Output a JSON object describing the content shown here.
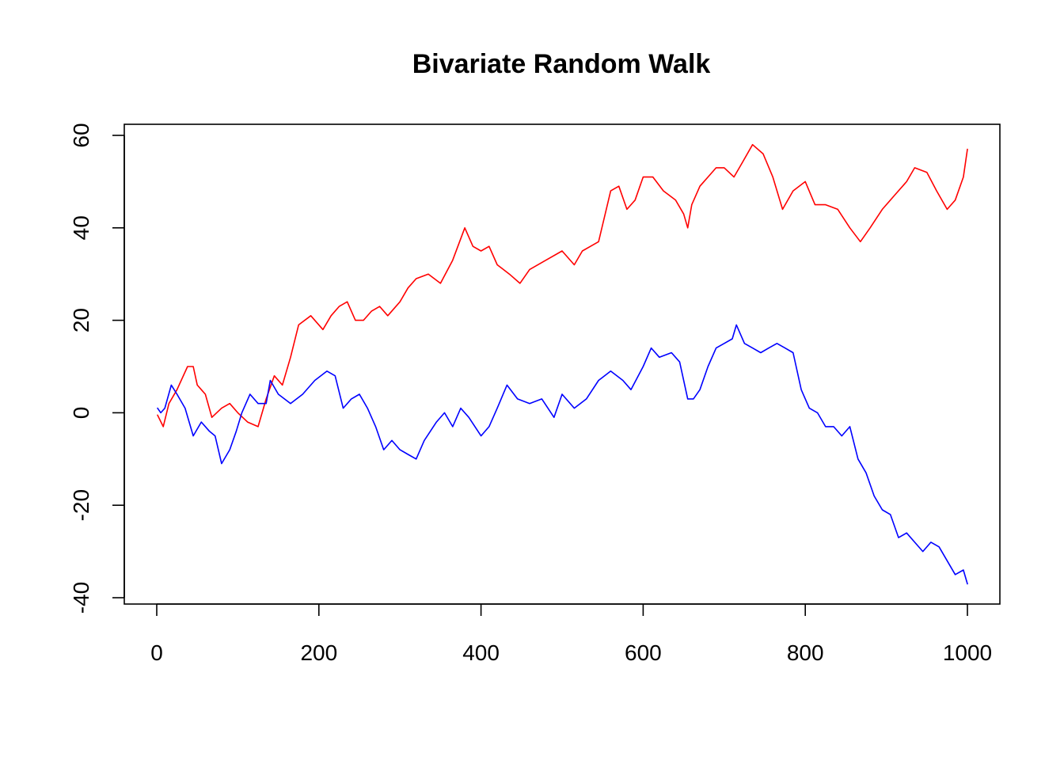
{
  "chart_data": {
    "type": "line",
    "title": "Bivariate Random Walk",
    "xlabel": "",
    "ylabel": "",
    "xlim": [
      1,
      1000
    ],
    "ylim": [
      -40,
      60
    ],
    "x_ticks": [
      0,
      200,
      400,
      600,
      800,
      1000
    ],
    "y_ticks": [
      -40,
      -20,
      0,
      20,
      40,
      60
    ],
    "x_tick_labels": [
      "0",
      "200",
      "400",
      "600",
      "800",
      "1000"
    ],
    "y_tick_labels": [
      "-40",
      "-20",
      "0",
      "20",
      "40",
      "60"
    ],
    "grid": false,
    "legend": "none",
    "series": [
      {
        "color": "#ff0000",
        "x": [
          1,
          8,
          15,
          25,
          38,
          45,
          50,
          60,
          68,
          80,
          90,
          100,
          112,
          125,
          135,
          145,
          155,
          165,
          175,
          190,
          205,
          215,
          225,
          235,
          245,
          255,
          265,
          275,
          285,
          300,
          310,
          320,
          335,
          350,
          365,
          380,
          390,
          400,
          410,
          420,
          435,
          448,
          460,
          480,
          500,
          515,
          525,
          535,
          545,
          560,
          570,
          580,
          590,
          600,
          612,
          625,
          640,
          650,
          655,
          660,
          670,
          680,
          690,
          700,
          712,
          722,
          735,
          748,
          760,
          772,
          785,
          800,
          812,
          825,
          840,
          855,
          868,
          880,
          895,
          910,
          925,
          935,
          950,
          962,
          975,
          985,
          995,
          1000
        ],
        "y": [
          -0.5,
          -3,
          2,
          5,
          10,
          10,
          6,
          4,
          -1,
          1,
          2,
          0,
          -2,
          -3,
          3,
          8,
          6,
          12,
          19,
          21,
          18,
          21,
          23,
          24,
          20,
          20,
          22,
          23,
          21,
          24,
          27,
          29,
          30,
          28,
          33,
          40,
          36,
          35,
          36,
          32,
          30,
          28,
          31,
          33,
          35,
          32,
          35,
          36,
          37,
          48,
          49,
          44,
          46,
          51,
          51,
          48,
          46,
          43,
          40,
          45,
          49,
          51,
          53,
          53,
          51,
          54,
          58,
          56,
          51,
          44,
          48,
          50,
          45,
          45,
          44,
          40,
          37,
          40,
          44,
          47,
          50,
          53,
          52,
          48,
          44,
          46,
          51,
          57
        ]
      },
      {
        "color": "#0000ff",
        "x": [
          1,
          5,
          10,
          18,
          25,
          35,
          45,
          55,
          65,
          72,
          80,
          90,
          98,
          105,
          115,
          125,
          135,
          140,
          150,
          165,
          180,
          195,
          210,
          220,
          230,
          240,
          250,
          260,
          270,
          280,
          290,
          300,
          310,
          320,
          330,
          345,
          355,
          365,
          375,
          385,
          400,
          410,
          420,
          432,
          445,
          460,
          475,
          490,
          500,
          515,
          530,
          545,
          560,
          575,
          585,
          600,
          610,
          620,
          635,
          645,
          655,
          662,
          670,
          680,
          690,
          700,
          710,
          715,
          725,
          735,
          745,
          755,
          765,
          775,
          785,
          795,
          805,
          815,
          825,
          835,
          845,
          855,
          865,
          875,
          885,
          895,
          905,
          915,
          925,
          935,
          945,
          955,
          965,
          975,
          985,
          995,
          1000
        ],
        "y": [
          1,
          0,
          1,
          6,
          4,
          1,
          -5,
          -2,
          -4,
          -5,
          -11,
          -8,
          -4,
          0,
          4,
          2,
          2,
          7,
          4,
          2,
          4,
          7,
          9,
          8,
          1,
          3,
          4,
          1,
          -3,
          -8,
          -6,
          -8,
          -9,
          -10,
          -6,
          -2,
          0,
          -3,
          1,
          -1,
          -5,
          -3,
          1,
          6,
          3,
          2,
          3,
          -1,
          4,
          1,
          3,
          7,
          9,
          7,
          5,
          10,
          14,
          12,
          13,
          11,
          3,
          3,
          5,
          10,
          14,
          15,
          16,
          19,
          15,
          14,
          13,
          14,
          15,
          14,
          13,
          5,
          1,
          0,
          -3,
          -3,
          -5,
          -3,
          -10,
          -13,
          -18,
          -21,
          -22,
          -27,
          -26,
          -28,
          -30,
          -28,
          -29,
          -32,
          -35,
          -34,
          -37
        ]
      }
    ]
  }
}
